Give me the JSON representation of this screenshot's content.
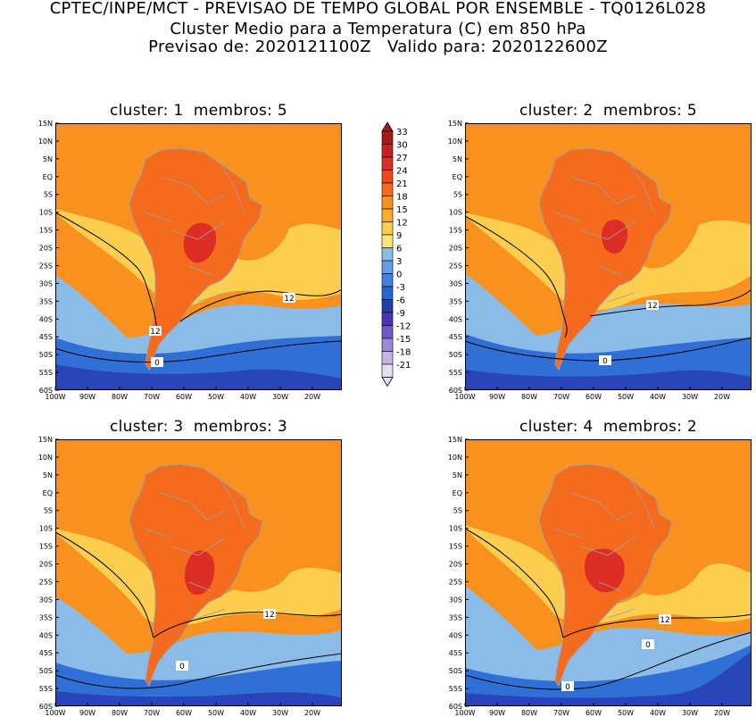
{
  "header": {
    "line1": "CPTEC/INPE/MCT - PREVISAO DE TEMPO GLOBAL POR ENSEMBLE - TQ0126L028",
    "line2": "Cluster Medio para a Temperatura (C) em 850 hPa",
    "line3": "Previsao de: 2020121100Z   Valido para: 2020122600Z"
  },
  "panels": [
    {
      "title": "cluster: 1  membros: 5",
      "contour_labels": [
        "12",
        "12",
        "0"
      ]
    },
    {
      "title": "cluster: 2  membros: 5",
      "contour_labels": [
        "12",
        "0"
      ]
    },
    {
      "title": "cluster: 3  membros: 3",
      "contour_labels": [
        "12",
        "0"
      ]
    },
    {
      "title": "cluster: 4  membros: 2",
      "contour_labels": [
        "12",
        "0",
        "0"
      ]
    }
  ],
  "lat_labels": [
    "15N",
    "10N",
    "5N",
    "EQ",
    "5S",
    "10S",
    "15S",
    "20S",
    "25S",
    "30S",
    "35S",
    "40S",
    "45S",
    "50S",
    "55S",
    "60S"
  ],
  "lon_labels": [
    "100W",
    "90W",
    "80W",
    "70W",
    "60W",
    "50W",
    "40W",
    "30W",
    "20W"
  ],
  "colorbar": {
    "labels": [
      "33",
      "30",
      "27",
      "24",
      "21",
      "18",
      "15",
      "12",
      "9",
      "6",
      "3",
      "0",
      "-3",
      "-6",
      "-9",
      "-12",
      "-15",
      "-18",
      "-21"
    ],
    "colors": [
      "#a51a1a",
      "#c42323",
      "#dc2e24",
      "#ee4a1d",
      "#f46b1d",
      "#f8911d",
      "#f9ad2a",
      "#fbce4f",
      "#fde57c",
      "#8bbce8",
      "#5e9fe8",
      "#3f82e2",
      "#2765d0",
      "#2140a8",
      "#4a35b0",
      "#6e58c8",
      "#9a87d8",
      "#c2b5e6",
      "#e6def4"
    ]
  },
  "map_colors": {
    "cold_purple": "#5b3fc0",
    "very_cold": "#2a45b5",
    "cold": "#2f6fd6",
    "cool": "#5e9fe8",
    "mild": "#8bbce8",
    "yellow": "#fde57c",
    "warm_yellow": "#fbce4f",
    "orange_light": "#f9ad2a",
    "orange": "#f8911d",
    "hot": "#f46b1d",
    "very_hot": "#ee4a1d",
    "hottest": "#dc2e24",
    "land_border": "#a0a0a0"
  }
}
